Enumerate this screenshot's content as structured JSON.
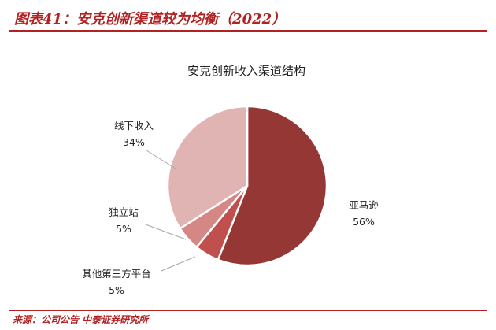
{
  "figure": {
    "label": "图表41：安克创新渠道较为均衡（2022）",
    "source": "来源：公司公告 中泰证券研究所"
  },
  "chart_data": {
    "type": "pie",
    "title": "安克创新收入渠道结构",
    "slices": [
      {
        "name": "亚马逊",
        "value": 56,
        "value_label": "56%",
        "color": "#953735"
      },
      {
        "name": "其他第三方平台",
        "value": 5,
        "value_label": "5%",
        "color": "#c0504d"
      },
      {
        "name": "独立站",
        "value": 5,
        "value_label": "5%",
        "color": "#d48784"
      },
      {
        "name": "线下收入",
        "value": 34,
        "value_label": "34%",
        "color": "#e0b4b3"
      }
    ],
    "start_angle_deg": 0,
    "direction": "clockwise",
    "legend": "none"
  }
}
